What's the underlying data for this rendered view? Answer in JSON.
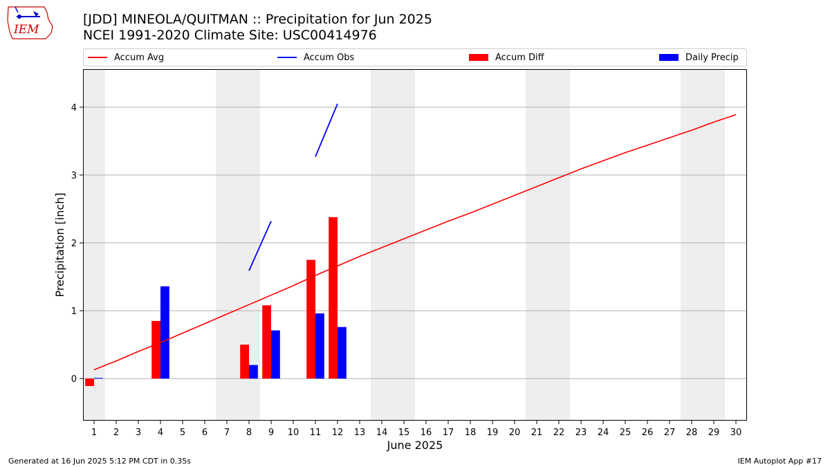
{
  "header": {
    "title_line1": "[JDD] MINEOLA/QUITMAN :: Precipitation for Jun 2025",
    "title_line2": "NCEI 1991-2020 Climate Site: USC00414976"
  },
  "logo": {
    "text": "IEM",
    "color": "#cc0000",
    "accent": "#0000cc"
  },
  "footer": {
    "left": "Generated at 16 Jun 2025 5:12 PM CDT in 0.35s",
    "right": "IEM Autoplot App #17"
  },
  "colors": {
    "avg": "#ff0000",
    "obs": "#0000ff",
    "diff": "#ff0000",
    "daily": "#0000ff",
    "weekend": "#eeeeee",
    "grid": "#b0b0b0"
  },
  "chart_data": {
    "type": "bar",
    "xlabel": "June 2025",
    "ylabel": "Precipitation [inch]",
    "xlim": [
      0.5,
      30.5
    ],
    "ylim": [
      -0.62,
      4.56
    ],
    "x_ticks": [
      1,
      2,
      3,
      4,
      5,
      6,
      7,
      8,
      9,
      10,
      11,
      12,
      13,
      14,
      15,
      16,
      17,
      18,
      19,
      20,
      21,
      22,
      23,
      24,
      25,
      26,
      27,
      28,
      29,
      30
    ],
    "y_ticks": [
      0,
      1,
      2,
      3,
      4
    ],
    "grid": "y",
    "legend_position": "top",
    "weekend_shading": [
      [
        0.5,
        1.5
      ],
      [
        6.5,
        8.5
      ],
      [
        13.5,
        15.5
      ],
      [
        20.5,
        22.5
      ],
      [
        27.5,
        29.5
      ]
    ],
    "series": [
      {
        "name": "Accum Avg",
        "kind": "line",
        "x": [
          1,
          2,
          3,
          4,
          5,
          6,
          7,
          8,
          9,
          10,
          11,
          12,
          13,
          14,
          15,
          16,
          17,
          18,
          19,
          20,
          21,
          22,
          23,
          24,
          25,
          26,
          27,
          28,
          29,
          30
        ],
        "values": [
          0.13,
          0.26,
          0.4,
          0.53,
          0.67,
          0.81,
          0.95,
          1.09,
          1.23,
          1.37,
          1.52,
          1.66,
          1.8,
          1.93,
          2.06,
          2.19,
          2.32,
          2.44,
          2.57,
          2.7,
          2.83,
          2.96,
          3.09,
          3.21,
          3.33,
          3.44,
          3.55,
          3.66,
          3.78,
          3.89
        ]
      },
      {
        "name": "Accum Obs",
        "kind": "line",
        "segments": [
          {
            "x": [
              8,
              9
            ],
            "values": [
              1.59,
              2.32
            ]
          },
          {
            "x": [
              11,
              12
            ],
            "values": [
              3.27,
              4.05
            ]
          }
        ]
      },
      {
        "name": "Accum Diff",
        "kind": "bar",
        "x": [
          1,
          4,
          8,
          9,
          11,
          12
        ],
        "values": [
          -0.11,
          0.85,
          0.5,
          1.08,
          1.75,
          2.38
        ]
      },
      {
        "name": "Daily Precip",
        "kind": "bar",
        "x": [
          1,
          4,
          8,
          9,
          11,
          12
        ],
        "values": [
          0.01,
          1.36,
          0.2,
          0.71,
          0.96,
          0.76
        ]
      }
    ]
  }
}
